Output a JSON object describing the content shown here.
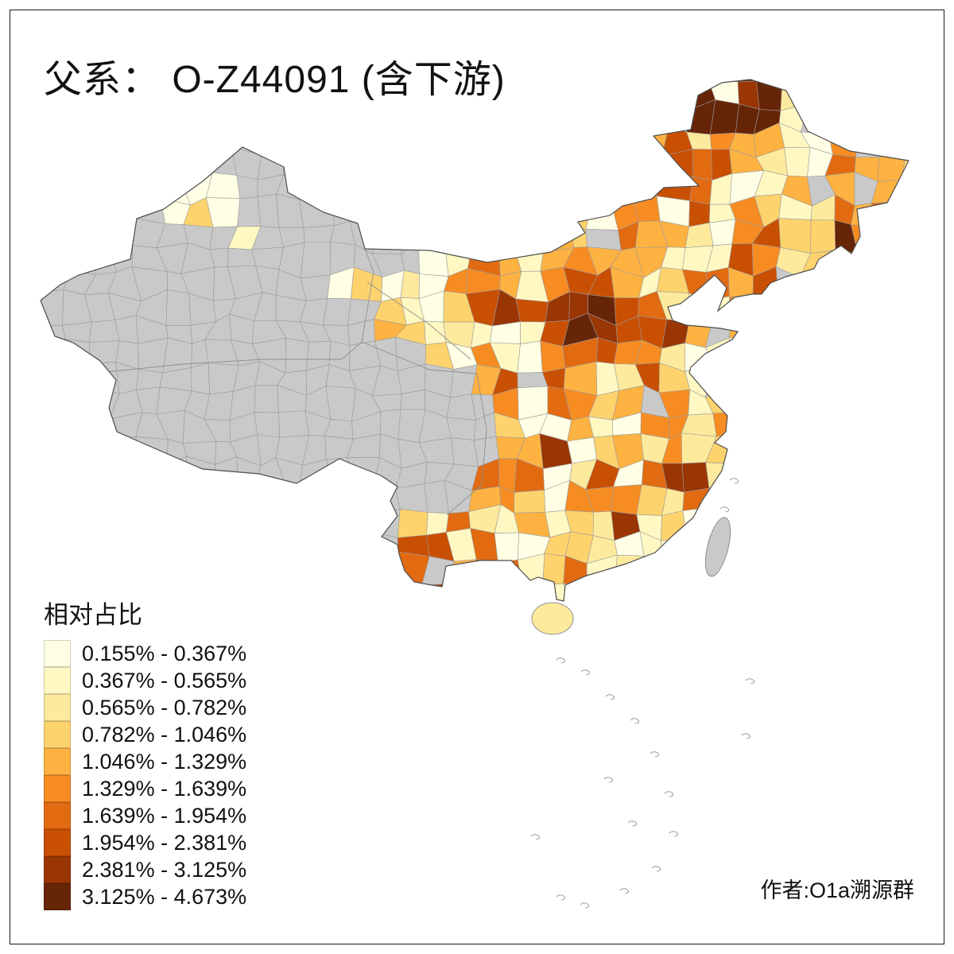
{
  "title": "父系： O-Z44091 (含下游)",
  "legend": {
    "title": "相对占比",
    "no_data_color": "#C9C9C9",
    "classes": [
      {
        "label": "0.155% - 0.367%",
        "color": "#FFFFE5"
      },
      {
        "label": "0.367% - 0.565%",
        "color": "#FFF8C2"
      },
      {
        "label": "0.565% - 0.782%",
        "color": "#FEEA9D"
      },
      {
        "label": "0.782% - 1.046%",
        "color": "#FED36D"
      },
      {
        "label": "1.046% - 1.329%",
        "color": "#FEB241"
      },
      {
        "label": "1.329% - 1.639%",
        "color": "#F78C22"
      },
      {
        "label": "1.639% - 1.954%",
        "color": "#E26A11"
      },
      {
        "label": "1.954% - 2.381%",
        "color": "#C94F03"
      },
      {
        "label": "2.381% - 3.125%",
        "color": "#9A3504"
      },
      {
        "label": "3.125% - 4.673%",
        "color": "#662506"
      }
    ]
  },
  "author": "作者:O1a溯源群"
}
